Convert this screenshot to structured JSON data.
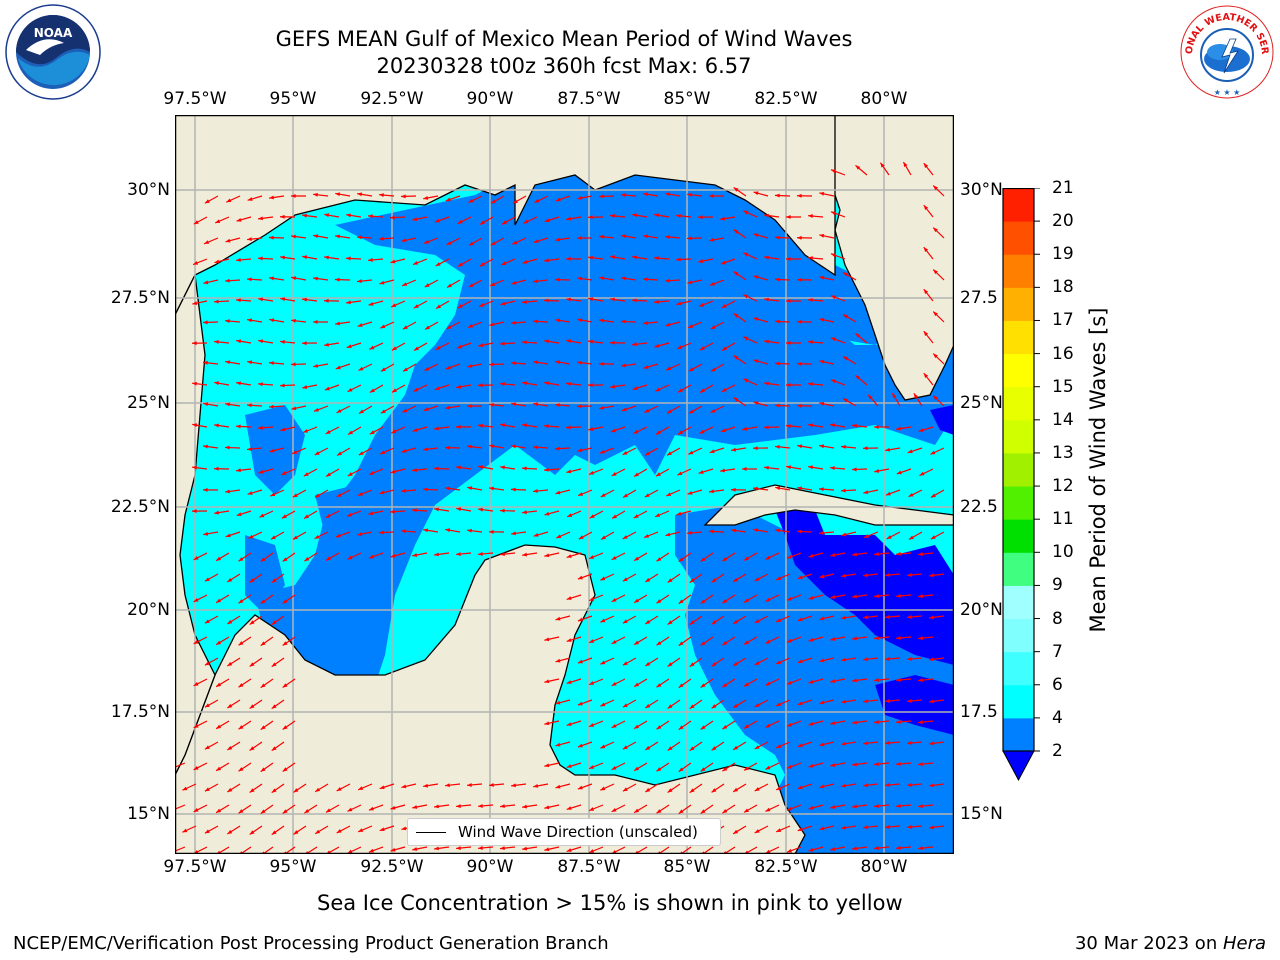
{
  "title_line1": "GEFS MEAN Gulf of Mexico Mean Period of Wind Waves",
  "title_line2": "20230328 t00z 360h fcst   Max: 6.57",
  "lon_ticks": [
    "97.5°W",
    "95°W",
    "92.5°W",
    "90°W",
    "87.5°W",
    "85°W",
    "82.5°W",
    "80°W"
  ],
  "lat_ticks_left": [
    "30°N",
    "27.5°N",
    "25°N",
    "22.5°N",
    "20°N",
    "17.5°N",
    "15°N"
  ],
  "lat_ticks_right": [
    "30°N",
    "27.5",
    "25°N",
    "22.5",
    "20°N",
    "17.5",
    "15°N"
  ],
  "legend_label": "Wind Wave Direction (unscaled)",
  "colorbar": {
    "title": "Mean Period of Wind Waves [s]",
    "levels": [
      "2",
      "4",
      "6",
      "7",
      "8",
      "9",
      "10",
      "11",
      "12",
      "13",
      "14",
      "15",
      "16",
      "17",
      "18",
      "19",
      "20",
      "21"
    ],
    "colors": [
      "#0080ff",
      "#00ffff",
      "#40ffff",
      "#80ffff",
      "#a0ffff",
      "#40ff80",
      "#00e000",
      "#50f000",
      "#a0f000",
      "#d0ff00",
      "#e8ff00",
      "#ffff00",
      "#ffe000",
      "#ffb000",
      "#ff8000",
      "#ff5000",
      "#ff2000"
    ],
    "under_color": "#0000ff"
  },
  "map_colors": {
    "land": "#efedd9",
    "ocean_low": "#0000ff",
    "ocean_2_4": "#0080ff",
    "ocean_4_6": "#00ffff",
    "arrow": "#ff0000",
    "grid": "#b4b4b4"
  },
  "ice_note": "Sea Ice Concentration > 15% is shown in pink to yellow",
  "footer_left": "NCEP/EMC/Verification Post Processing Product Generation Branch",
  "footer_right_date": "30 Mar 2023 on ",
  "footer_right_host": "Hera",
  "logos": {
    "left": "NOAA",
    "right": "NATIONAL WEATHER SERVICE"
  }
}
